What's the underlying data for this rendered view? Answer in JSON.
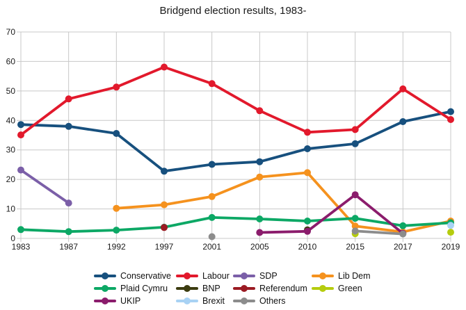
{
  "title": "Bridgend election results, 1983-",
  "chart_data": {
    "type": "line",
    "title": "Bridgend election results, 1983-",
    "xlabel": "",
    "ylabel": "",
    "categories": [
      "1983",
      "1987",
      "1992",
      "1997",
      "2001",
      "2005",
      "2010",
      "2015",
      "2017",
      "2019"
    ],
    "ylim": [
      0,
      70
    ],
    "ytick_step": 10,
    "grid": true,
    "grid_color": "#c8c8c8",
    "axis_text_color": "#1a1a1a",
    "legend_position": "bottom",
    "series": [
      {
        "name": "Conservative",
        "color": "#17507e",
        "points": [
          [
            "1983",
            38.6
          ],
          [
            "1987",
            38.0
          ],
          [
            "1992",
            35.6
          ],
          [
            "1997",
            22.8
          ],
          [
            "2001",
            25.1
          ],
          [
            "2005",
            26.0
          ],
          [
            "2010",
            30.4
          ],
          [
            "2015",
            32.1
          ],
          [
            "2017",
            39.6
          ],
          [
            "2019",
            43.0
          ]
        ]
      },
      {
        "name": "Labour",
        "color": "#e2192c",
        "points": [
          [
            "1983",
            35.1
          ],
          [
            "1987",
            47.3
          ],
          [
            "1992",
            51.3
          ],
          [
            "1997",
            58.1
          ],
          [
            "2001",
            52.5
          ],
          [
            "2005",
            43.3
          ],
          [
            "2010",
            36.0
          ],
          [
            "2015",
            36.9
          ],
          [
            "2017",
            50.7
          ],
          [
            "2019",
            40.3
          ]
        ]
      },
      {
        "name": "SDP",
        "color": "#7b5fa8",
        "points": [
          [
            "1983",
            23.2
          ],
          [
            "1987",
            12.0
          ]
        ]
      },
      {
        "name": "Lib Dem",
        "color": "#f5921e",
        "points": [
          [
            "1992",
            10.2
          ],
          [
            "1997",
            11.4
          ],
          [
            "2001",
            14.2
          ],
          [
            "2005",
            20.8
          ],
          [
            "2010",
            22.3
          ],
          [
            "2015",
            4.2
          ],
          [
            "2017",
            2.2
          ],
          [
            "2019",
            5.9
          ]
        ]
      },
      {
        "name": "Plaid Cymru",
        "color": "#0ca865",
        "points": [
          [
            "1983",
            3.0
          ],
          [
            "1987",
            2.3
          ],
          [
            "1992",
            2.8
          ],
          [
            "1997",
            3.8
          ],
          [
            "2001",
            7.1
          ],
          [
            "2005",
            6.6
          ],
          [
            "2010",
            5.9
          ],
          [
            "2015",
            6.8
          ],
          [
            "2017",
            4.3
          ],
          [
            "2019",
            5.3
          ]
        ]
      },
      {
        "name": "BNP",
        "color": "#3c3c10",
        "points": [
          [
            "2010",
            2.9
          ]
        ]
      },
      {
        "name": "Referendum",
        "color": "#9b1b23",
        "points": [
          [
            "1997",
            3.7
          ]
        ]
      },
      {
        "name": "Green",
        "color": "#b5cc0e",
        "points": [
          [
            "2015",
            1.6
          ],
          [
            "2019",
            2.1
          ]
        ]
      },
      {
        "name": "UKIP",
        "color": "#8b1c6c",
        "points": [
          [
            "2005",
            2.0
          ],
          [
            "2010",
            2.4
          ],
          [
            "2015",
            14.8
          ],
          [
            "2017",
            1.7
          ]
        ]
      },
      {
        "name": "Brexit",
        "color": "#a8d2f4",
        "points": [
          [
            "2019",
            4.4
          ]
        ]
      },
      {
        "name": "Others",
        "color": "#8c8c8c",
        "points": [
          [
            "2001",
            0.6
          ],
          [
            "2015",
            2.5
          ],
          [
            "2017",
            1.5
          ]
        ]
      }
    ]
  }
}
